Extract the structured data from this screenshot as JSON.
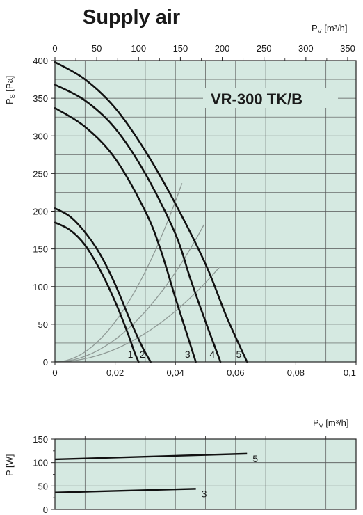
{
  "title": "Supply air",
  "chart_data": [
    {
      "type": "line",
      "annotation": "VR-300 TK/B",
      "x_bottom": {
        "label": "",
        "lim": [
          0,
          0.1
        ],
        "ticks": [
          0,
          0.02,
          0.04,
          0.06,
          0.08,
          0.1
        ],
        "tick_labels": [
          "0",
          "0,02",
          "0,04",
          "0,06",
          "0,08",
          "0,1"
        ]
      },
      "x_top": {
        "label_main": "P",
        "label_sub": "V",
        "label_unit": " [m³/h]",
        "lim": [
          0,
          360
        ],
        "ticks": [
          0,
          50,
          100,
          150,
          200,
          250,
          300,
          350
        ],
        "tick_labels": [
          "0",
          "50",
          "100",
          "150",
          "200",
          "250",
          "300",
          "350"
        ]
      },
      "y": {
        "label_main": "P",
        "label_sub": "S",
        "label_unit": " [Pa]",
        "lim": [
          0,
          400
        ],
        "ticks": [
          0,
          50,
          100,
          150,
          200,
          250,
          300,
          350,
          400
        ],
        "tick_labels": [
          "0",
          "50",
          "100",
          "150",
          "200",
          "250",
          "300",
          "350",
          "400"
        ]
      },
      "grid": true,
      "series": [
        {
          "name": "1",
          "x": [
            0,
            0.005,
            0.01,
            0.015,
            0.02,
            0.024,
            0.0265,
            0.0278
          ],
          "y": [
            185,
            175,
            155,
            122,
            80,
            40,
            12,
            0
          ]
        },
        {
          "name": "2",
          "x": [
            0,
            0.005,
            0.01,
            0.015,
            0.02,
            0.025,
            0.029,
            0.0318
          ],
          "y": [
            204,
            193,
            172,
            143,
            103,
            55,
            20,
            0
          ]
        },
        {
          "name": "3",
          "x": [
            0,
            0.01,
            0.02,
            0.03,
            0.035,
            0.04,
            0.044,
            0.0468
          ],
          "y": [
            337,
            312,
            270,
            200,
            150,
            85,
            35,
            0
          ]
        },
        {
          "name": "4",
          "x": [
            0,
            0.01,
            0.02,
            0.03,
            0.04,
            0.045,
            0.0505,
            0.055
          ],
          "y": [
            368,
            347,
            310,
            250,
            170,
            110,
            48,
            0
          ]
        },
        {
          "name": "5",
          "x": [
            0,
            0.01,
            0.02,
            0.03,
            0.04,
            0.05,
            0.057,
            0.0638
          ],
          "y": [
            398,
            375,
            337,
            280,
            210,
            130,
            60,
            0
          ]
        }
      ],
      "system_curves": [
        {
          "x": [
            0,
            0.0422
          ],
          "y": [
            0,
            237
          ]
        },
        {
          "x": [
            0,
            0.0495
          ],
          "y": [
            0,
            182
          ]
        },
        {
          "x": [
            0,
            0.0545
          ],
          "y": [
            0,
            125
          ]
        }
      ]
    },
    {
      "type": "line",
      "x_unit_main": "P",
      "x_unit_sub": "V",
      "x_unit": " [m³/h]",
      "ylabel": "P [W]",
      "xlim": [
        0,
        0.1
      ],
      "ylim": [
        0,
        150
      ],
      "yticks": [
        0,
        50,
        100,
        150
      ],
      "ytick_labels": [
        "0",
        "50",
        "100",
        "150"
      ],
      "grid": true,
      "series": [
        {
          "name": "5",
          "x": [
            0,
            0.0638
          ],
          "y": [
            107,
            119
          ]
        },
        {
          "name": "3",
          "x": [
            0,
            0.0468
          ],
          "y": [
            36,
            44
          ]
        }
      ]
    }
  ]
}
